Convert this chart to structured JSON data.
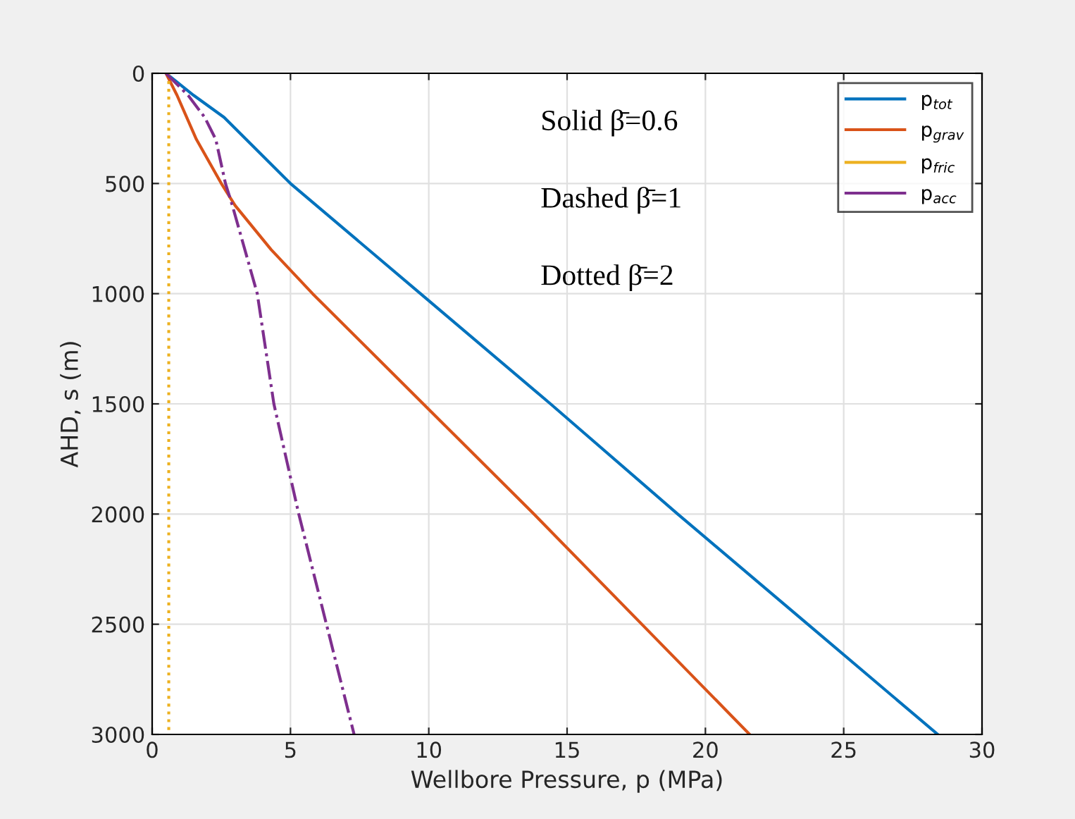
{
  "chart_data": {
    "type": "line",
    "xlabel": "Wellbore Pressure, p (MPa)",
    "ylabel": "AHD, s (m)",
    "xlim": [
      0,
      30
    ],
    "xticks": [
      0,
      5,
      10,
      15,
      20,
      25,
      30
    ],
    "ylim": [
      3000,
      0
    ],
    "yticks": [
      0,
      500,
      1000,
      1500,
      2000,
      2500,
      3000
    ],
    "grid": true,
    "legend": "top right",
    "annotations": [
      "Solid β̄=0.6",
      "Dashed β̄=1",
      "Dotted β̄=2"
    ],
    "series": [
      {
        "name": "p$_{tot}$",
        "color": "#0072bd",
        "line_style": "solid",
        "x": [
          0.5,
          1.5,
          2.6,
          5.0,
          9.7,
          14.4,
          19.0,
          23.7,
          28.4
        ],
        "values": [
          0,
          100,
          200,
          500,
          1000,
          1500,
          2000,
          2500,
          3000
        ]
      },
      {
        "name": "p$_{grav}$",
        "color": "#d95319",
        "line_style": "solid",
        "x": [
          0.5,
          0.9,
          1.6,
          2.5,
          3.0,
          4.3,
          5.8,
          9.8,
          13.8,
          17.7,
          21.6
        ],
        "values": [
          0,
          100,
          300,
          500,
          600,
          800,
          1000,
          1500,
          2000,
          2500,
          3000
        ]
      },
      {
        "name": "p$_{fric}$",
        "color": "#edb120",
        "line_style": "dotted",
        "x": [
          0.6,
          0.6
        ],
        "values": [
          0,
          3000
        ]
      },
      {
        "name": "p$_{acc}$",
        "color": "#7e2f8e",
        "line_style": "dashed",
        "x": [
          0.5,
          1.3,
          1.9,
          2.3,
          2.65,
          2.9,
          3.8,
          4.4,
          5.3,
          6.3,
          7.3
        ],
        "values": [
          0,
          100,
          200,
          300,
          500,
          600,
          1000,
          1500,
          2000,
          2500,
          3000
        ]
      }
    ]
  }
}
